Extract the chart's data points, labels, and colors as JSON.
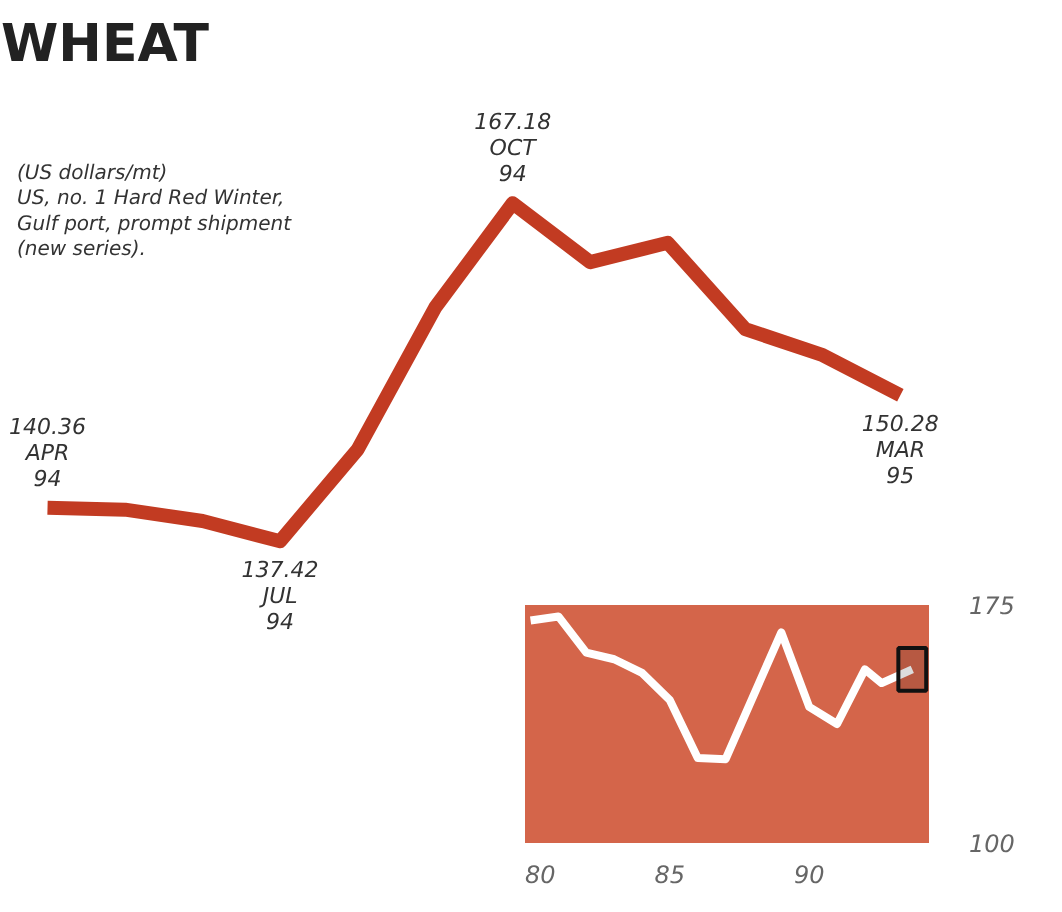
{
  "chart_data": [
    {
      "type": "line",
      "title": "WHEAT",
      "annotations": [
        "(US dollars/mt)\nUS, no. 1 Hard Red Winter,\nGulf port, prompt shipment\n(new series)."
      ],
      "categories": [
        null,
        null,
        null,
        null,
        null,
        null,
        null,
        null,
        null,
        null,
        null,
        null
      ],
      "series": [
        {
          "color": "#c23b22",
          "values": [
            140.36,
            140.2,
            139.2,
            137.42,
            145.5,
            158.0,
            167.18,
            162.0,
            163.7,
            156.1,
            153.8,
            150.28
          ],
          "value_labels": [
            "140.36\nAPR\n94",
            null,
            null,
            "137.42\nJUL\n94",
            null,
            null,
            "167.18\nOCT\n94",
            null,
            null,
            null,
            null,
            "150.28\nMAR\n95"
          ]
        }
      ]
    },
    {
      "type": "line",
      "x": [
        80,
        81,
        82,
        83,
        84,
        85,
        86,
        87,
        89,
        90,
        91,
        92,
        92.6,
        93.7
      ],
      "series": [
        {
          "color": "#ffffff",
          "values": [
            170.1,
            171.4,
            160.0,
            157.9,
            153.6,
            145.0,
            126.8,
            126.4,
            166.4,
            142.9,
            137.5,
            154.7,
            150.4,
            154.7
          ]
        }
      ],
      "xlim": [
        79.8,
        94.3
      ],
      "ylim": [
        100,
        175
      ],
      "xticks": [
        80,
        85,
        90
      ],
      "yticks": [
        100,
        175
      ],
      "bands": [
        {
          "axis": "x",
          "from": 93.2,
          "to": 94.2,
          "color": "#111111"
        }
      ]
    }
  ]
}
